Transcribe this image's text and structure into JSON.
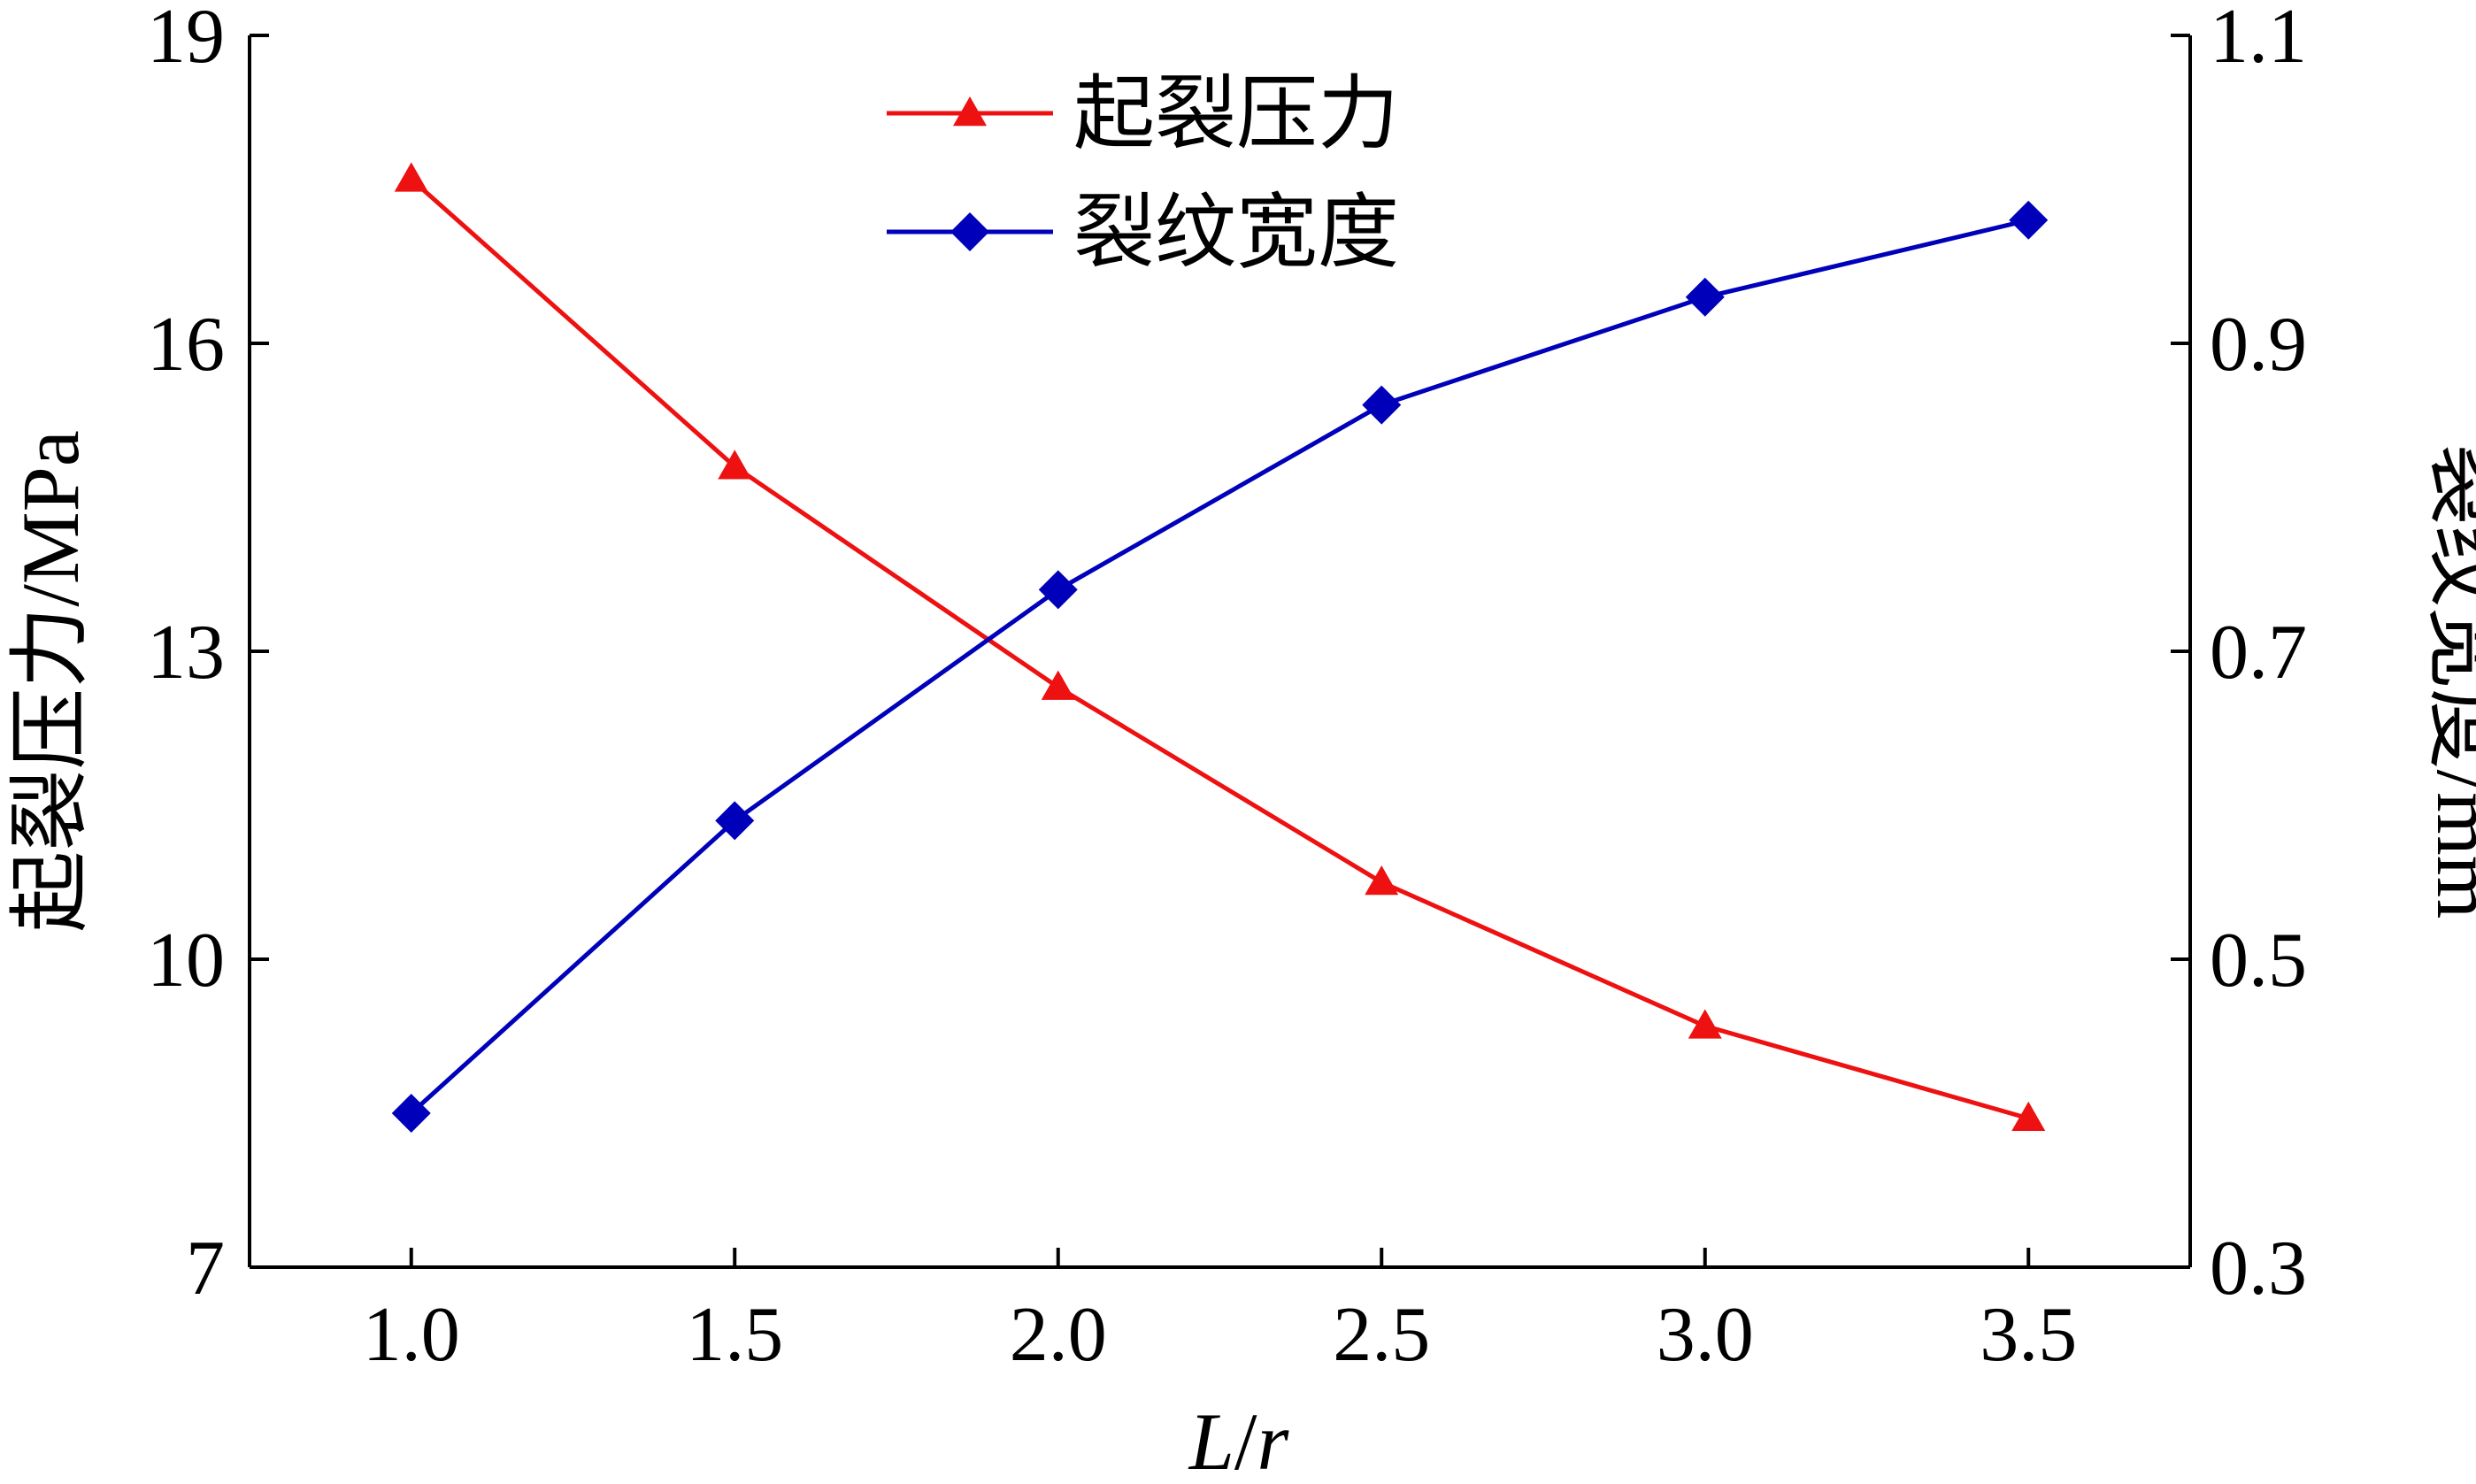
{
  "chart_data": {
    "type": "line",
    "xlabel": "L/r",
    "xlabel_italic_parts": [
      "L",
      "r"
    ],
    "ylabel_left": "起裂压力/MPa",
    "ylabel_right": "裂纹宽度/mm",
    "x": [
      1.0,
      1.5,
      2.0,
      2.5,
      3.0,
      3.5
    ],
    "x_tick_labels": [
      "1.0",
      "1.5",
      "2.0",
      "2.5",
      "3.0",
      "3.5"
    ],
    "xlim": [
      0.75,
      3.75
    ],
    "y_left_ticks": [
      7,
      10,
      13,
      16,
      19
    ],
    "y_left_lim": [
      7,
      19
    ],
    "y_right_ticks": [
      "0.3",
      "0.5",
      "0.7",
      "0.9",
      "1.1"
    ],
    "y_right_lim": [
      0.3,
      1.1
    ],
    "grid": false,
    "legend_position": "top-center",
    "series": [
      {
        "name": "起裂压力",
        "axis": "left",
        "color": "#ee1111",
        "marker": "triangle",
        "values": [
          17.6,
          14.8,
          12.65,
          10.75,
          9.35,
          8.45
        ]
      },
      {
        "name": "裂纹宽度",
        "axis": "right",
        "color": "#0000bb",
        "marker": "diamond",
        "values": [
          0.4,
          0.59,
          0.74,
          0.86,
          0.93,
          0.98
        ]
      }
    ]
  }
}
